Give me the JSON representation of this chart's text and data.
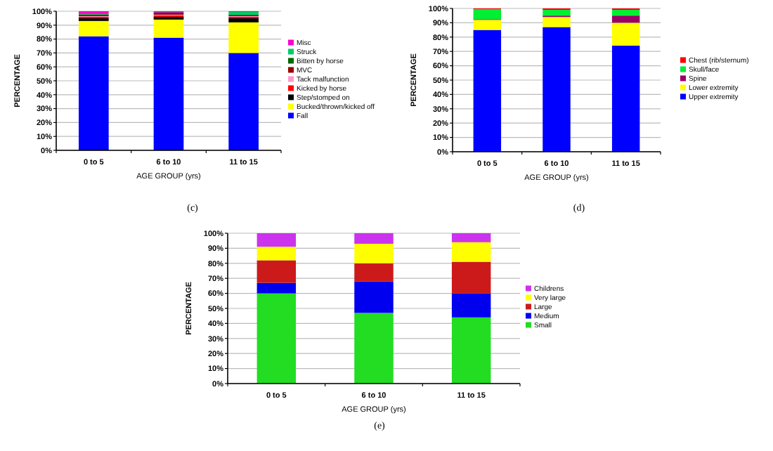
{
  "chart_data": [
    {
      "type": "bar",
      "stacked": true,
      "categories": [
        "0 to 5",
        "6 to 10",
        "11 to 15"
      ],
      "xlabel": "AGE GROUP (yrs)",
      "ylabel": "PERCENTAGE",
      "ylim": [
        0,
        100
      ],
      "yticks": [
        {
          "value": 0,
          "label": "0%"
        },
        {
          "value": 10,
          "label": "10%"
        },
        {
          "value": 20,
          "label": "20%"
        },
        {
          "value": 30,
          "label": "30%"
        },
        {
          "value": 40,
          "label": "40%"
        },
        {
          "value": 50,
          "label": "50%"
        },
        {
          "value": 60,
          "label": "60%"
        },
        {
          "value": 70,
          "label": "70%"
        },
        {
          "value": 80,
          "label": "80%"
        },
        {
          "value": 90,
          "label": "90%"
        },
        {
          "value": 100,
          "label": "100%"
        }
      ],
      "grid": "y",
      "legend": "right",
      "annotations": [
        "(c)"
      ],
      "series": [
        {
          "name": "Fall",
          "color": "#0000ff",
          "values": [
            82,
            81,
            70
          ]
        },
        {
          "name": "Bucked/thrown/kicked off",
          "color": "#ffff00",
          "values": [
            11,
            13,
            22
          ]
        },
        {
          "name": "Step/stomped on",
          "color": "#000000",
          "values": [
            2,
            2,
            3
          ]
        },
        {
          "name": "Kicked by horse",
          "color": "#ff0000",
          "values": [
            1,
            1,
            1
          ]
        },
        {
          "name": "Tack malfunction",
          "color": "#ff99cc",
          "values": [
            0.5,
            0.5,
            0.5
          ]
        },
        {
          "name": "MVC",
          "color": "#990000",
          "values": [
            1,
            1,
            0.5
          ]
        },
        {
          "name": "Bitten by horse",
          "color": "#006600",
          "values": [
            0,
            0.5,
            0.5
          ]
        },
        {
          "name": "Struck",
          "color": "#00cc66",
          "values": [
            0.5,
            0,
            2
          ]
        },
        {
          "name": "Misc",
          "color": "#ff00cc",
          "values": [
            2,
            1,
            0.5
          ]
        }
      ]
    },
    {
      "type": "bar",
      "stacked": true,
      "categories": [
        "0 to 5",
        "6 to 10",
        "11 to 15"
      ],
      "xlabel": "AGE GROUP (yrs)",
      "ylabel": "PERCENTAGE",
      "ylim": [
        0,
        100
      ],
      "yticks": [
        {
          "value": 0,
          "label": "0%"
        },
        {
          "value": 10,
          "label": "10%"
        },
        {
          "value": 20,
          "label": "20%"
        },
        {
          "value": 30,
          "label": "30%"
        },
        {
          "value": 40,
          "label": "40%"
        },
        {
          "value": 50,
          "label": "50%"
        },
        {
          "value": 60,
          "label": "60%"
        },
        {
          "value": 70,
          "label": "70%"
        },
        {
          "value": 80,
          "label": "80%"
        },
        {
          "value": 90,
          "label": "90%"
        },
        {
          "value": 100,
          "label": "100%"
        }
      ],
      "grid": "y",
      "legend": "right",
      "annotations": [
        "(d)"
      ],
      "series": [
        {
          "name": "Upper extremity",
          "color": "#0000ff",
          "values": [
            85,
            87,
            74
          ]
        },
        {
          "name": "Lower extremity",
          "color": "#ffff00",
          "values": [
            7,
            7,
            16
          ]
        },
        {
          "name": "Spine",
          "color": "#990066",
          "values": [
            0.5,
            1,
            5
          ]
        },
        {
          "name": "Skull/face",
          "color": "#00ee33",
          "values": [
            7,
            4,
            4
          ]
        },
        {
          "name": "Chest (rib/sternum)",
          "color": "#ff0000",
          "values": [
            0.5,
            1,
            1
          ]
        }
      ]
    },
    {
      "type": "bar",
      "stacked": true,
      "categories": [
        "0 to 5",
        "6 to 10",
        "11 to 15"
      ],
      "xlabel": "AGE GROUP (yrs)",
      "ylabel": "PERCENTAGE",
      "ylim": [
        0,
        100
      ],
      "yticks": [
        {
          "value": 0,
          "label": "0%"
        },
        {
          "value": 10,
          "label": "10%"
        },
        {
          "value": 20,
          "label": "20%"
        },
        {
          "value": 30,
          "label": "30%"
        },
        {
          "value": 40,
          "label": "40%"
        },
        {
          "value": 50,
          "label": "50%"
        },
        {
          "value": 60,
          "label": "60%"
        },
        {
          "value": 70,
          "label": "70%"
        },
        {
          "value": 80,
          "label": "80%"
        },
        {
          "value": 90,
          "label": "90%"
        },
        {
          "value": 100,
          "label": "100%"
        }
      ],
      "grid": "y",
      "legend": "right",
      "annotations": [
        "(e)"
      ],
      "series": [
        {
          "name": "Small",
          "color": "#22dd22",
          "values": [
            60,
            47,
            44
          ]
        },
        {
          "name": "Medium",
          "color": "#0000ee",
          "values": [
            7,
            21,
            16
          ]
        },
        {
          "name": "Large",
          "color": "#cc1a1a",
          "values": [
            15,
            12,
            21
          ]
        },
        {
          "name": "Very large",
          "color": "#ffff00",
          "values": [
            9,
            13,
            13
          ]
        },
        {
          "name": "Childrens",
          "color": "#cc33ee",
          "values": [
            9,
            7,
            6
          ]
        }
      ]
    }
  ]
}
